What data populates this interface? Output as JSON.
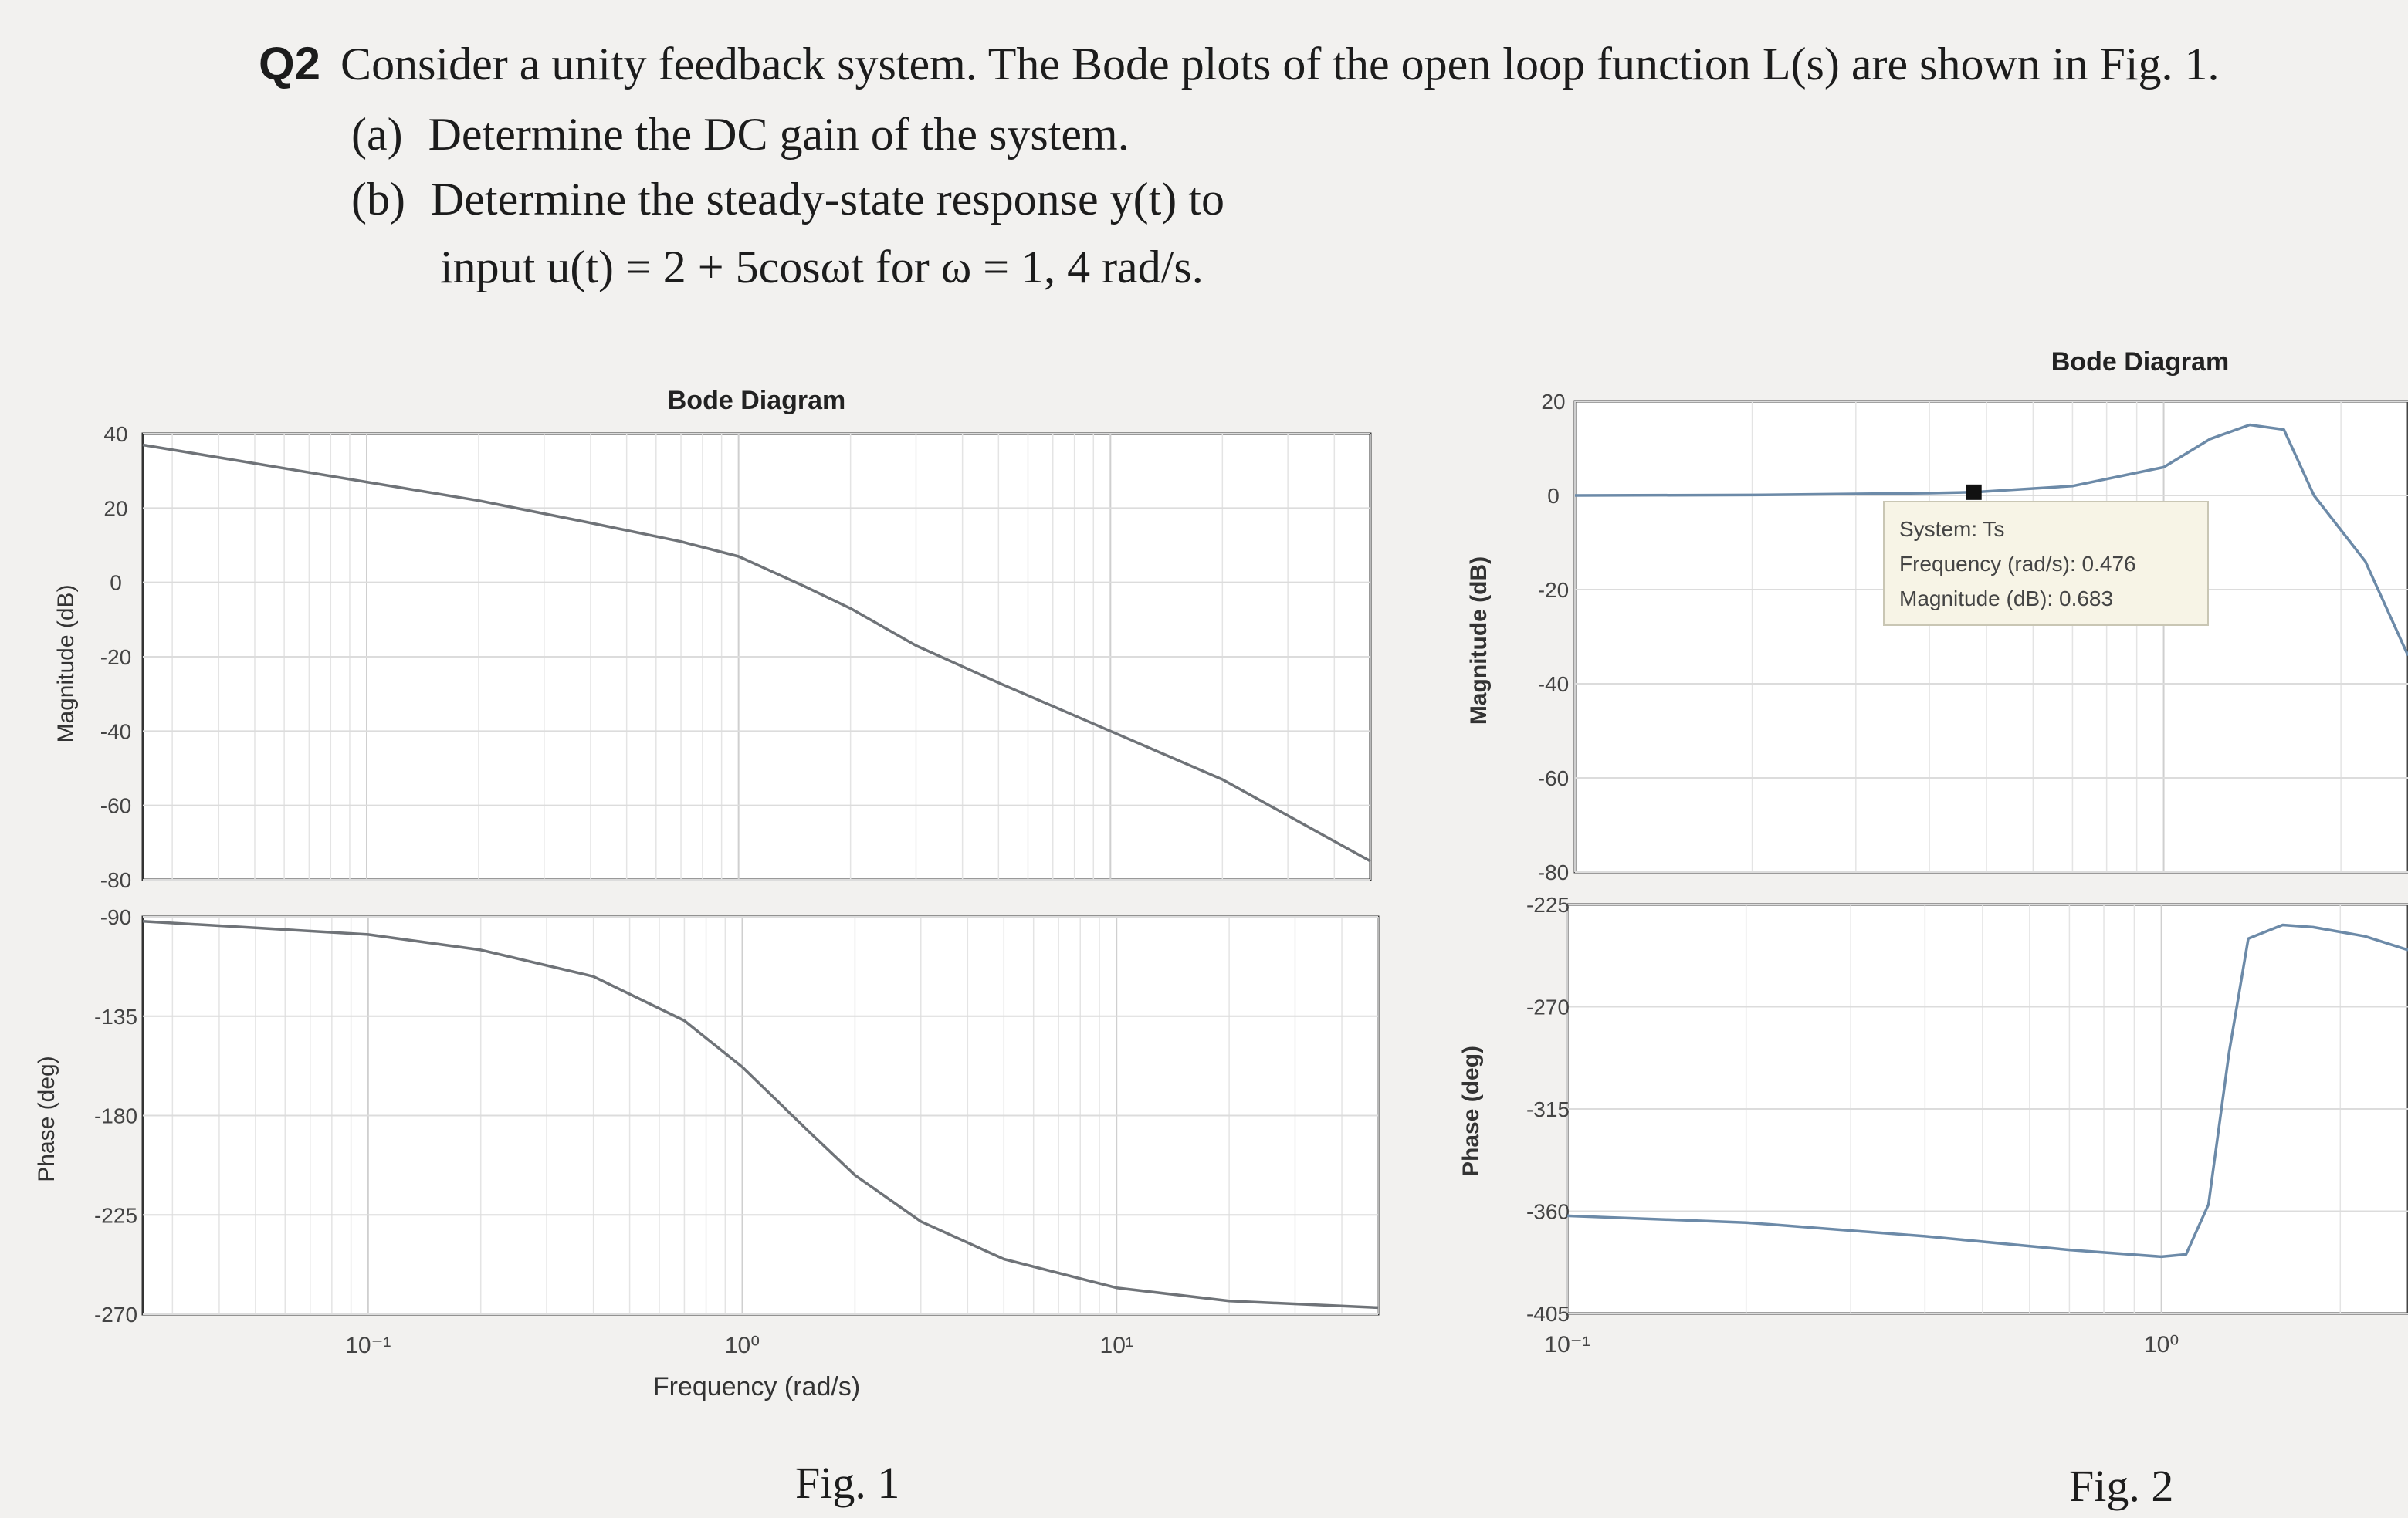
{
  "question": {
    "number": "Q2",
    "text": "Consider a unity feedback system. The Bode plots of the open loop function L(s) are shown in Fig. 1.",
    "part_a_label": "(a)",
    "part_a": "Determine the DC gain of the system.",
    "part_b_label": "(b)",
    "part_b_line1": "Determine the steady-state response y(t) to",
    "part_b_line2": "input u(t) = 2 + 5cosωt for ω = 1, 4 rad/s."
  },
  "fig1": {
    "title": "Bode Diagram",
    "caption": "Fig. 1",
    "xlabel": "Frequency (rad/s)",
    "mag_ylabel": "Magnitude (dB)",
    "phase_ylabel": "Phase (deg)",
    "x_ticks": [
      "10⁻¹",
      "10⁰",
      "10¹"
    ],
    "mag_ticks": [
      "40",
      "20",
      "0",
      "-20",
      "-40",
      "-60",
      "-80"
    ],
    "phase_ticks": [
      "-90",
      "-135",
      "-180",
      "-225",
      "-270"
    ]
  },
  "fig2": {
    "title": "Bode Diagram",
    "caption": "Fig. 2",
    "mag_ylabel": "Magnitude (dB)",
    "phase_ylabel": "Phase (deg)",
    "x_ticks": [
      "10⁻¹",
      "10⁰"
    ],
    "mag_ticks": [
      "20",
      "0",
      "-20",
      "-40",
      "-60",
      "-80"
    ],
    "phase_ticks": [
      "-225",
      "-270",
      "-315",
      "-360",
      "-405"
    ],
    "datatip": {
      "system": "System: Ts",
      "frequency": "Frequency (rad/s): 0.476",
      "magnitude": "Magnitude (dB): 0.683"
    }
  },
  "chart_data": [
    {
      "type": "line",
      "title": "Bode Diagram",
      "xlabel": "Frequency (rad/s)",
      "ylabel": "Magnitude (dB)",
      "xscale": "log",
      "xlim": [
        0.025,
        50
      ],
      "ylim": [
        -80,
        40
      ],
      "grid": true,
      "series": [
        {
          "x": [
            0.025,
            0.05,
            0.1,
            0.2,
            0.4,
            0.7,
            1.0,
            1.5,
            2.0,
            3.0,
            5.0,
            10,
            20,
            50
          ],
          "y": [
            37,
            32,
            27,
            22,
            16,
            11,
            7,
            -1,
            -7,
            -17,
            -27,
            -40,
            -53,
            -75
          ]
        }
      ]
    },
    {
      "type": "line",
      "xlabel": "Frequency (rad/s)",
      "ylabel": "Phase (deg)",
      "xscale": "log",
      "xlim": [
        0.025,
        50
      ],
      "ylim": [
        -270,
        -90
      ],
      "grid": true,
      "series": [
        {
          "x": [
            0.025,
            0.05,
            0.1,
            0.2,
            0.4,
            0.7,
            1.0,
            1.5,
            2.0,
            3.0,
            5.0,
            10,
            20,
            50
          ],
          "y": [
            -92,
            -95,
            -98,
            -105,
            -117,
            -137,
            -158,
            -187,
            -207,
            -228,
            -245,
            -258,
            -264,
            -267
          ]
        }
      ]
    },
    {
      "type": "line",
      "title": "Bode Diagram",
      "ylabel": "Magnitude (dB)",
      "xscale": "log",
      "xlim": [
        0.1,
        2.6
      ],
      "ylim": [
        -80,
        20
      ],
      "grid": true,
      "series": [
        {
          "x": [
            0.1,
            0.2,
            0.4,
            0.476,
            0.7,
            1.0,
            1.2,
            1.4,
            1.6,
            1.8,
            2.2,
            2.6
          ],
          "y": [
            0,
            0.1,
            0.5,
            0.683,
            2,
            6,
            12,
            15,
            14,
            0,
            -14,
            -34
          ]
        }
      ]
    },
    {
      "type": "line",
      "ylabel": "Phase (deg)",
      "xscale": "log",
      "xlim": [
        0.1,
        2.6
      ],
      "ylim": [
        -405,
        -225
      ],
      "grid": true,
      "series": [
        {
          "x": [
            0.1,
            0.2,
            0.4,
            0.7,
            1.0,
            1.1,
            1.2,
            1.3,
            1.4,
            1.6,
            1.8,
            2.2,
            2.6
          ],
          "y": [
            -362,
            -365,
            -371,
            -377,
            -380,
            -379,
            -357,
            -290,
            -240,
            -234,
            -235,
            -239,
            -245
          ]
        }
      ]
    }
  ]
}
